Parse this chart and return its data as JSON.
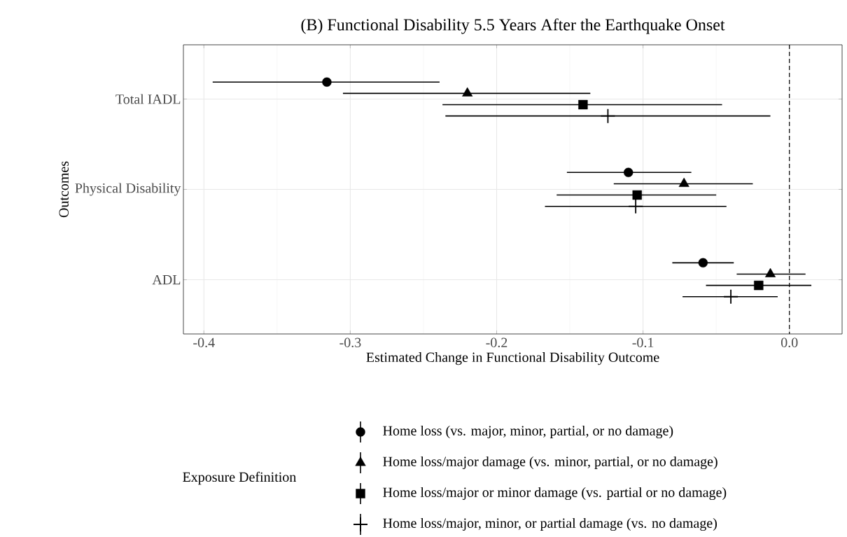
{
  "chart_data": {
    "type": "scatter",
    "orientation": "horizontal",
    "title": "(B) Functional Disability 5.5 Years After the Earthquake Onset",
    "xlabel": "Estimated Change in Functional Disability Outcome",
    "ylabel": "Outcomes",
    "legend_title": "Exposure Definition",
    "categories": [
      "Total IADL",
      "Physical Disability",
      "ADL"
    ],
    "xlim": [
      -0.414,
      0.036
    ],
    "xticks": [
      -0.4,
      -0.3,
      -0.2,
      -0.1,
      {
        "value": 0,
        "label": "0.0"
      }
    ],
    "grid": true,
    "legend": "bottom",
    "ref_lines": [
      {
        "axis": "x",
        "value": 0,
        "line_style": "dashed",
        "color": "#000000"
      }
    ],
    "series": [
      {
        "name": "Home loss (vs. major, minor, partial, or no damage)",
        "color": "#000000",
        "marker": "circle",
        "values": [
          -0.316,
          -0.11,
          -0.059
        ],
        "errors": [
          [
            -0.394,
            -0.239
          ],
          [
            -0.152,
            -0.067
          ],
          [
            -0.08,
            -0.038
          ]
        ]
      },
      {
        "name": "Home loss/major damage (vs. minor, partial, or no damage)",
        "color": "#000000",
        "marker": "triangle",
        "values": [
          -0.22,
          -0.072,
          -0.013
        ],
        "errors": [
          [
            -0.305,
            -0.136
          ],
          [
            -0.12,
            -0.025
          ],
          [
            -0.036,
            0.011
          ]
        ]
      },
      {
        "name": "Home loss/major or minor damage (vs. partial or no damage)",
        "color": "#000000",
        "marker": "square",
        "values": [
          -0.141,
          -0.104,
          -0.021
        ],
        "errors": [
          [
            -0.237,
            -0.046
          ],
          [
            -0.159,
            -0.05
          ],
          [
            -0.057,
            0.015
          ]
        ]
      },
      {
        "name": "Home loss/major, minor, or partial damage (vs. no damage)",
        "color": "#000000",
        "marker": "cross",
        "values": [
          -0.124,
          -0.105,
          -0.04
        ],
        "errors": [
          [
            -0.235,
            -0.013
          ],
          [
            -0.167,
            -0.043
          ],
          [
            -0.073,
            -0.008
          ]
        ]
      }
    ]
  }
}
